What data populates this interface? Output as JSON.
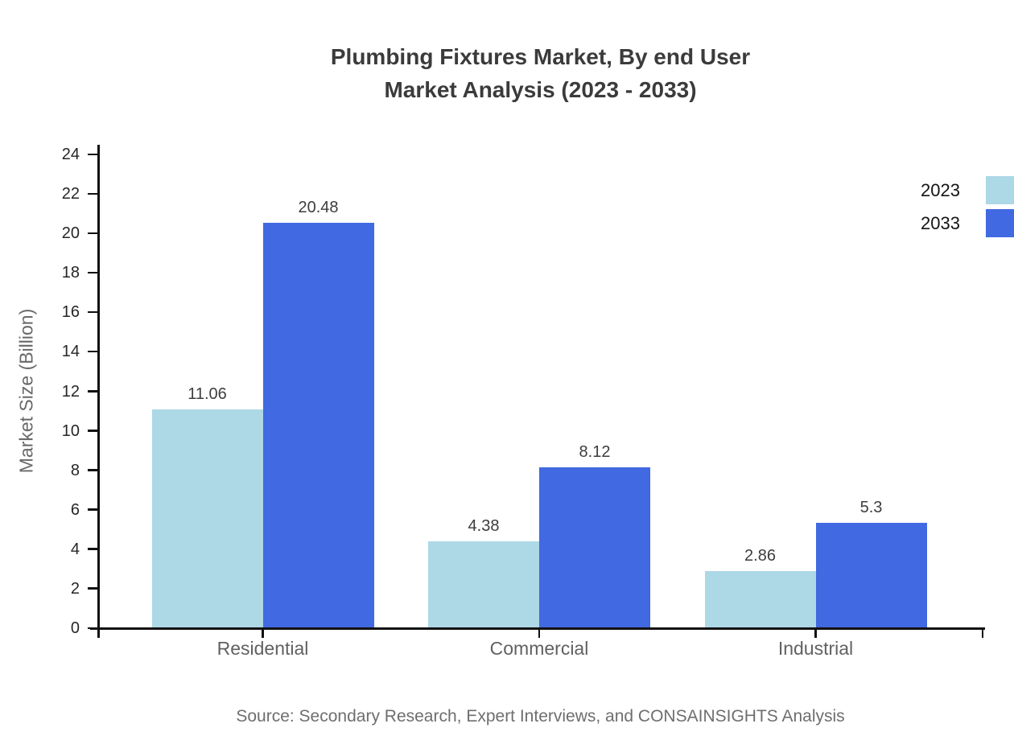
{
  "chart_data": {
    "type": "bar",
    "title_lines": [
      "Plumbing Fixtures Market, By end User",
      "Market Analysis (2023 - 2033)"
    ],
    "categories": [
      "Residential",
      "Commercial",
      "Industrial"
    ],
    "series": [
      {
        "name": "2023",
        "color": "#add8e6",
        "values": [
          11.06,
          4.38,
          2.86
        ]
      },
      {
        "name": "2033",
        "color": "#4169e1",
        "values": [
          20.48,
          8.12,
          5.3
        ]
      }
    ],
    "value_labels": [
      [
        "11.06",
        "4.38",
        "2.86"
      ],
      [
        "20.48",
        "8.12",
        "5.3"
      ]
    ],
    "ylabel": "Market Size (Billion)",
    "ylim": [
      0,
      24
    ],
    "ytick_step": 2,
    "grid": false,
    "legend_position": "top-right",
    "axis_color": "#111111",
    "source_note": "Source: Secondary Research, Expert Interviews, and CONSAINSIGHTS Analysis"
  }
}
